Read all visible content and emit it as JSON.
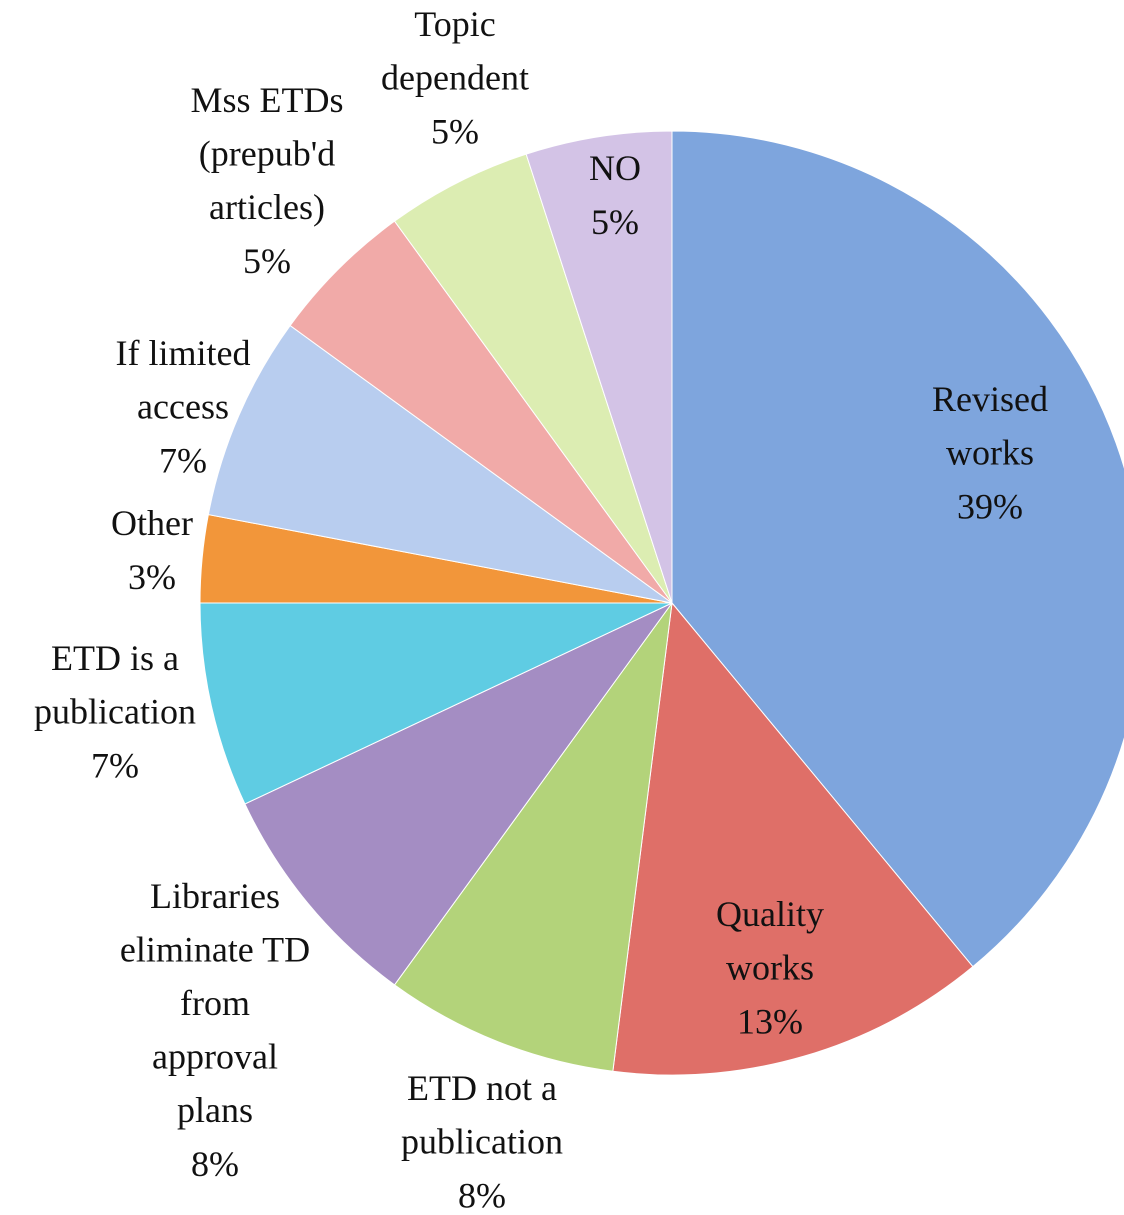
{
  "chart_data": {
    "type": "pie",
    "categories": [
      "Revised works",
      "Quality works",
      "ETD not a publication",
      "Libraries eliminate TD from approval plans",
      "ETD is a publication",
      "Other",
      "If limited access",
      "Mss ETDs (prepub'd articles)",
      "Topic dependent",
      "NO"
    ],
    "values": [
      39,
      13,
      8,
      8,
      7,
      3,
      7,
      5,
      5,
      5
    ],
    "value_labels": [
      "39%",
      "13%",
      "8%",
      "8%",
      "7%",
      "3%",
      "7%",
      "5%",
      "5%",
      "5%"
    ],
    "colors": [
      "#7ea5dd",
      "#df6f68",
      "#b3d37a",
      "#a48dc3",
      "#5fcce3",
      "#f2963a",
      "#b8cdef",
      "#f1aaa8",
      "#dcedb2",
      "#d3c3e6"
    ]
  }
}
